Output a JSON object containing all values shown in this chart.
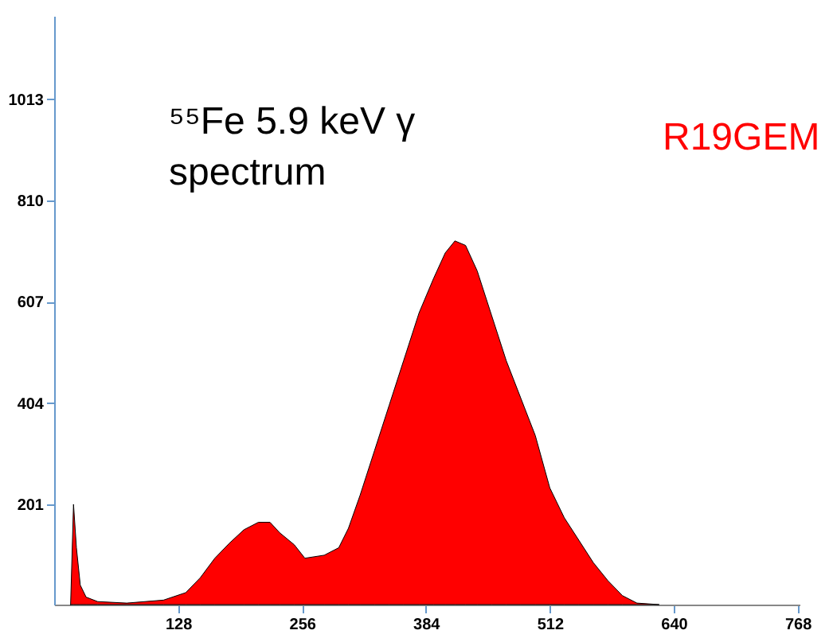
{
  "chart_data": {
    "type": "area",
    "color": "#ff0000",
    "annotations": [
      "⁵⁵Fe 5.9 keV γ spectrum",
      "R19GEM"
    ],
    "x": [
      17,
      20,
      23,
      27,
      33,
      45,
      75,
      113,
      136,
      151,
      166,
      181,
      196,
      211,
      223,
      233,
      248,
      259,
      279,
      294,
      304,
      316,
      331,
      346,
      361,
      377,
      392,
      404,
      414,
      425,
      437,
      452,
      467,
      482,
      497,
      512,
      527,
      542,
      557,
      572,
      587,
      602,
      625
    ],
    "values": [
      0,
      201,
      114,
      39,
      15,
      6,
      3,
      9,
      24,
      54,
      93,
      123,
      150,
      165,
      165,
      144,
      120,
      93,
      99,
      114,
      153,
      219,
      309,
      399,
      489,
      585,
      654,
      705,
      729,
      720,
      669,
      579,
      489,
      414,
      339,
      234,
      174,
      129,
      84,
      48,
      18,
      3,
      0
    ],
    "xlim": [
      0,
      770
    ],
    "ylim": [
      0,
      1180
    ],
    "xticks": [
      128,
      256,
      384,
      512,
      640,
      768
    ],
    "yticks": [
      201,
      404,
      607,
      810,
      1013
    ],
    "grid": false
  }
}
